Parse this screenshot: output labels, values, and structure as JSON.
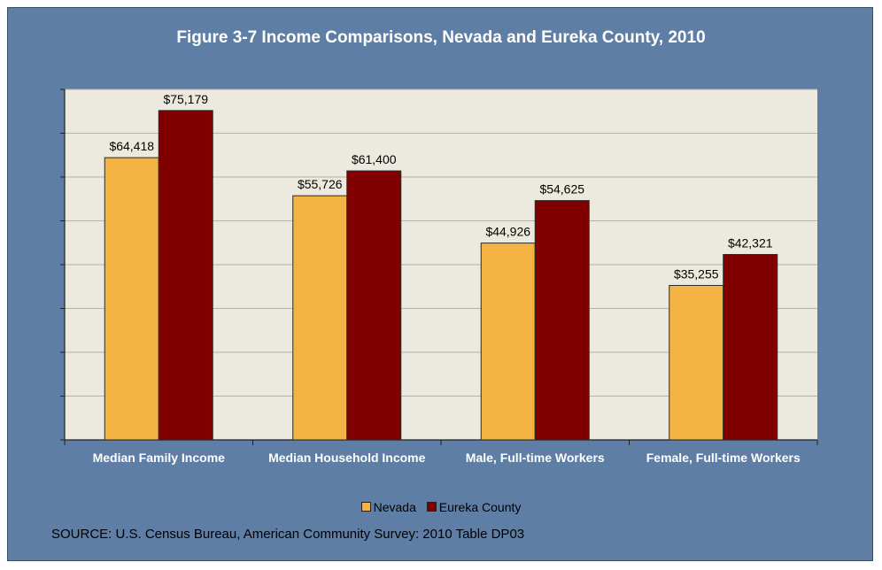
{
  "colors": {
    "frame_bg": "#5e7ea6",
    "plot_bg": "#eceadf",
    "nevada": "#f4b342",
    "eureka": "#800000"
  },
  "chart_data": {
    "type": "bar",
    "title": "Figure 3-7 Income Comparisons, Nevada and Eureka County, 2010",
    "categories": [
      "Median Family Income",
      "Median Household Income",
      "Male, Full-time Workers",
      "Female, Full-time Workers"
    ],
    "series": [
      {
        "name": "Nevada",
        "values": [
          64418,
          55726,
          44926,
          35255
        ],
        "labels": [
          "$64,418",
          "$55,726",
          "$44,926",
          "$35,255"
        ]
      },
      {
        "name": "Eureka County",
        "values": [
          75179,
          61400,
          54625,
          42321
        ],
        "labels": [
          "$75,179",
          "$61,400",
          "$54,625",
          "$42,321"
        ]
      }
    ],
    "ylim": [
      0,
      80000
    ],
    "grid": true,
    "legend_position": "bottom"
  },
  "source": "SOURCE: U.S. Census Bureau, American Community Survey: 2010 Table DP03"
}
